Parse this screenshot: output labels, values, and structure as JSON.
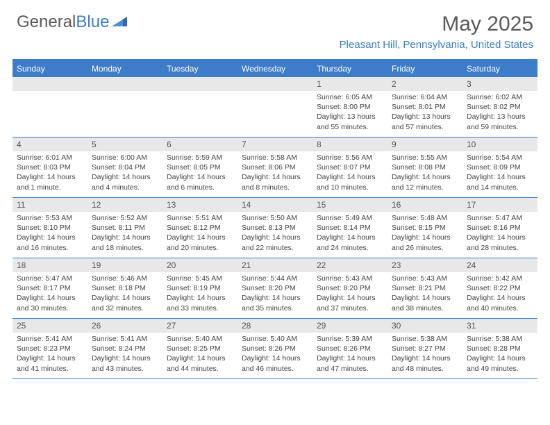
{
  "logo": {
    "general": "General",
    "blue": "Blue"
  },
  "title": "May 2025",
  "location": "Pleasant Hill, Pennsylvania, United States",
  "colors": {
    "accent": "#3d7cc9",
    "header_text": "#ffffff",
    "daynum_bg": "#e8e8e8",
    "body_text": "#444444"
  },
  "day_names": [
    "Sunday",
    "Monday",
    "Tuesday",
    "Wednesday",
    "Thursday",
    "Friday",
    "Saturday"
  ],
  "weeks": [
    [
      {
        "empty": true
      },
      {
        "empty": true
      },
      {
        "empty": true
      },
      {
        "empty": true
      },
      {
        "n": "1",
        "sr": "Sunrise: 6:05 AM",
        "ss": "Sunset: 8:00 PM",
        "dl": "Daylight: 13 hours and 55 minutes."
      },
      {
        "n": "2",
        "sr": "Sunrise: 6:04 AM",
        "ss": "Sunset: 8:01 PM",
        "dl": "Daylight: 13 hours and 57 minutes."
      },
      {
        "n": "3",
        "sr": "Sunrise: 6:02 AM",
        "ss": "Sunset: 8:02 PM",
        "dl": "Daylight: 13 hours and 59 minutes."
      }
    ],
    [
      {
        "n": "4",
        "sr": "Sunrise: 6:01 AM",
        "ss": "Sunset: 8:03 PM",
        "dl": "Daylight: 14 hours and 1 minute."
      },
      {
        "n": "5",
        "sr": "Sunrise: 6:00 AM",
        "ss": "Sunset: 8:04 PM",
        "dl": "Daylight: 14 hours and 4 minutes."
      },
      {
        "n": "6",
        "sr": "Sunrise: 5:59 AM",
        "ss": "Sunset: 8:05 PM",
        "dl": "Daylight: 14 hours and 6 minutes."
      },
      {
        "n": "7",
        "sr": "Sunrise: 5:58 AM",
        "ss": "Sunset: 8:06 PM",
        "dl": "Daylight: 14 hours and 8 minutes."
      },
      {
        "n": "8",
        "sr": "Sunrise: 5:56 AM",
        "ss": "Sunset: 8:07 PM",
        "dl": "Daylight: 14 hours and 10 minutes."
      },
      {
        "n": "9",
        "sr": "Sunrise: 5:55 AM",
        "ss": "Sunset: 8:08 PM",
        "dl": "Daylight: 14 hours and 12 minutes."
      },
      {
        "n": "10",
        "sr": "Sunrise: 5:54 AM",
        "ss": "Sunset: 8:09 PM",
        "dl": "Daylight: 14 hours and 14 minutes."
      }
    ],
    [
      {
        "n": "11",
        "sr": "Sunrise: 5:53 AM",
        "ss": "Sunset: 8:10 PM",
        "dl": "Daylight: 14 hours and 16 minutes."
      },
      {
        "n": "12",
        "sr": "Sunrise: 5:52 AM",
        "ss": "Sunset: 8:11 PM",
        "dl": "Daylight: 14 hours and 18 minutes."
      },
      {
        "n": "13",
        "sr": "Sunrise: 5:51 AM",
        "ss": "Sunset: 8:12 PM",
        "dl": "Daylight: 14 hours and 20 minutes."
      },
      {
        "n": "14",
        "sr": "Sunrise: 5:50 AM",
        "ss": "Sunset: 8:13 PM",
        "dl": "Daylight: 14 hours and 22 minutes."
      },
      {
        "n": "15",
        "sr": "Sunrise: 5:49 AM",
        "ss": "Sunset: 8:14 PM",
        "dl": "Daylight: 14 hours and 24 minutes."
      },
      {
        "n": "16",
        "sr": "Sunrise: 5:48 AM",
        "ss": "Sunset: 8:15 PM",
        "dl": "Daylight: 14 hours and 26 minutes."
      },
      {
        "n": "17",
        "sr": "Sunrise: 5:47 AM",
        "ss": "Sunset: 8:16 PM",
        "dl": "Daylight: 14 hours and 28 minutes."
      }
    ],
    [
      {
        "n": "18",
        "sr": "Sunrise: 5:47 AM",
        "ss": "Sunset: 8:17 PM",
        "dl": "Daylight: 14 hours and 30 minutes."
      },
      {
        "n": "19",
        "sr": "Sunrise: 5:46 AM",
        "ss": "Sunset: 8:18 PM",
        "dl": "Daylight: 14 hours and 32 minutes."
      },
      {
        "n": "20",
        "sr": "Sunrise: 5:45 AM",
        "ss": "Sunset: 8:19 PM",
        "dl": "Daylight: 14 hours and 33 minutes."
      },
      {
        "n": "21",
        "sr": "Sunrise: 5:44 AM",
        "ss": "Sunset: 8:20 PM",
        "dl": "Daylight: 14 hours and 35 minutes."
      },
      {
        "n": "22",
        "sr": "Sunrise: 5:43 AM",
        "ss": "Sunset: 8:20 PM",
        "dl": "Daylight: 14 hours and 37 minutes."
      },
      {
        "n": "23",
        "sr": "Sunrise: 5:43 AM",
        "ss": "Sunset: 8:21 PM",
        "dl": "Daylight: 14 hours and 38 minutes."
      },
      {
        "n": "24",
        "sr": "Sunrise: 5:42 AM",
        "ss": "Sunset: 8:22 PM",
        "dl": "Daylight: 14 hours and 40 minutes."
      }
    ],
    [
      {
        "n": "25",
        "sr": "Sunrise: 5:41 AM",
        "ss": "Sunset: 8:23 PM",
        "dl": "Daylight: 14 hours and 41 minutes."
      },
      {
        "n": "26",
        "sr": "Sunrise: 5:41 AM",
        "ss": "Sunset: 8:24 PM",
        "dl": "Daylight: 14 hours and 43 minutes."
      },
      {
        "n": "27",
        "sr": "Sunrise: 5:40 AM",
        "ss": "Sunset: 8:25 PM",
        "dl": "Daylight: 14 hours and 44 minutes."
      },
      {
        "n": "28",
        "sr": "Sunrise: 5:40 AM",
        "ss": "Sunset: 8:26 PM",
        "dl": "Daylight: 14 hours and 46 minutes."
      },
      {
        "n": "29",
        "sr": "Sunrise: 5:39 AM",
        "ss": "Sunset: 8:26 PM",
        "dl": "Daylight: 14 hours and 47 minutes."
      },
      {
        "n": "30",
        "sr": "Sunrise: 5:38 AM",
        "ss": "Sunset: 8:27 PM",
        "dl": "Daylight: 14 hours and 48 minutes."
      },
      {
        "n": "31",
        "sr": "Sunrise: 5:38 AM",
        "ss": "Sunset: 8:28 PM",
        "dl": "Daylight: 14 hours and 49 minutes."
      }
    ]
  ]
}
